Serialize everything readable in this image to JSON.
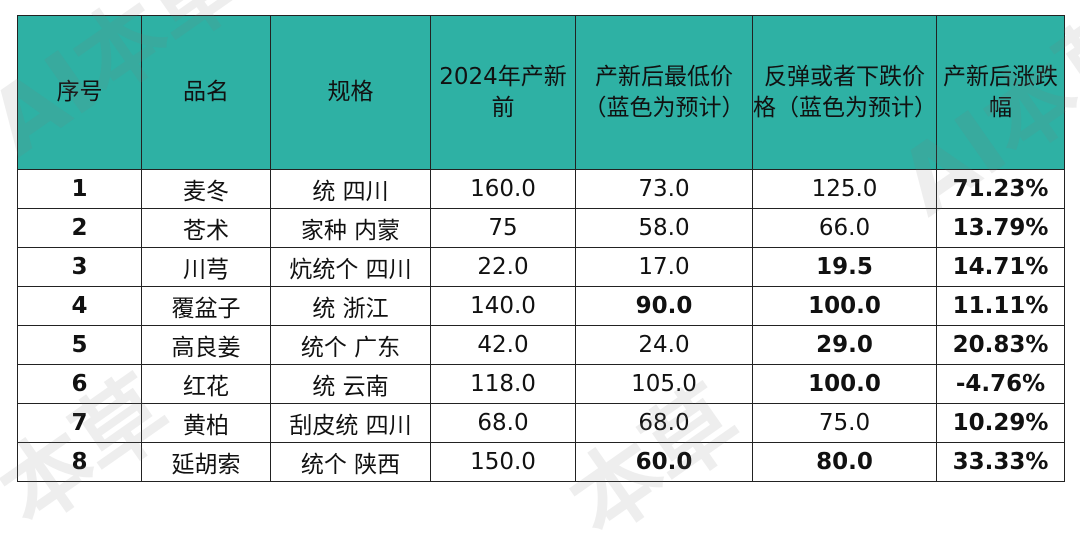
{
  "table": {
    "headers": [
      "序号",
      "品名",
      "规格",
      "2024年产新前",
      "产新后最低价（蓝色为预计）",
      "反弹或者下跌价格（蓝色为预计）",
      "产新后涨跌幅"
    ],
    "rows": [
      {
        "idx": "1",
        "name": "麦冬",
        "spec": "统 四川",
        "pre": "160.0",
        "low": "73.0",
        "rebound": "125.0",
        "change": "71.23%",
        "low_color": "normal",
        "rebound_color": "normal",
        "change_color": "red"
      },
      {
        "idx": "2",
        "name": "苍术",
        "spec": "家种 内蒙",
        "pre": "75",
        "low": "58.0",
        "rebound": "66.0",
        "change": "13.79%",
        "low_color": "normal",
        "rebound_color": "normal",
        "change_color": "red"
      },
      {
        "idx": "3",
        "name": "川芎",
        "spec": "炕统个 四川",
        "pre": "22.0",
        "low": "17.0",
        "rebound": "19.5",
        "change": "14.71%",
        "low_color": "normal",
        "rebound_color": "teal",
        "change_color": "red"
      },
      {
        "idx": "4",
        "name": "覆盆子",
        "spec": "统 浙江",
        "pre": "140.0",
        "low": "90.0",
        "rebound": "100.0",
        "change": "11.11%",
        "low_color": "teal",
        "rebound_color": "teal",
        "change_color": "red"
      },
      {
        "idx": "5",
        "name": "高良姜",
        "spec": "统个 广东",
        "pre": "42.0",
        "low": "24.0",
        "rebound": "29.0",
        "change": "20.83%",
        "low_color": "normal",
        "rebound_color": "teal",
        "change_color": "red"
      },
      {
        "idx": "6",
        "name": "红花",
        "spec": "统 云南",
        "pre": "118.0",
        "low": "105.0",
        "rebound": "100.0",
        "change": "-4.76%",
        "low_color": "normal",
        "rebound_color": "teal",
        "change_color": "green"
      },
      {
        "idx": "7",
        "name": "黄柏",
        "spec": "刮皮统 四川",
        "pre": "68.0",
        "low": "68.0",
        "rebound": "75.0",
        "change": "10.29%",
        "low_color": "normal",
        "rebound_color": "normal",
        "change_color": "red"
      },
      {
        "idx": "8",
        "name": "延胡索",
        "spec": "统个 陕西",
        "pre": "150.0",
        "low": "60.0",
        "rebound": "80.0",
        "change": "33.33%",
        "low_color": "teal",
        "rebound_color": "teal",
        "change_color": "red"
      }
    ]
  },
  "watermark": [
    "AI本草",
    "AI本草",
    "本草",
    "本草"
  ],
  "colors": {
    "header_bg": "#2eb1a4",
    "teal": "#1a8f93",
    "red": "#e02020",
    "green": "#1fae55"
  }
}
